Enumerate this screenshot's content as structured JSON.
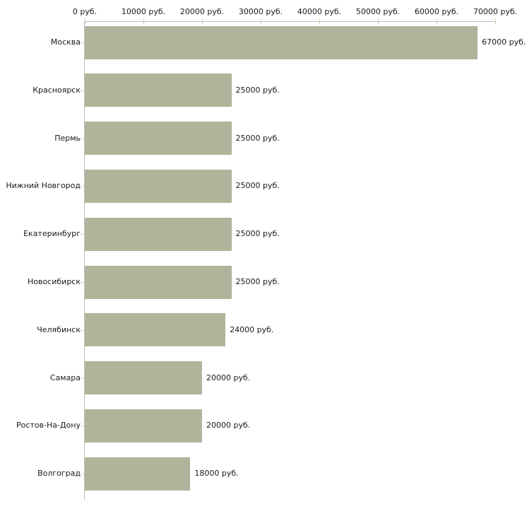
{
  "chart_data": {
    "type": "bar",
    "orientation": "horizontal",
    "title": "",
    "units": "руб.",
    "categories": [
      "Москва",
      "Красноярск",
      "Пермь",
      "Нижний Новгород",
      "Екатеринбург",
      "Новосибирск",
      "Челябинск",
      "Самара",
      "Ростов-На-Дону",
      "Волгоград"
    ],
    "values": [
      67000,
      25000,
      25000,
      25000,
      25000,
      25000,
      24000,
      20000,
      20000,
      18000
    ],
    "value_labels": [
      "67000 руб.",
      "25000 руб.",
      "25000 руб.",
      "25000 руб.",
      "25000 руб.",
      "25000 руб.",
      "24000 руб.",
      "20000 руб.",
      "20000 руб.",
      "18000 руб."
    ],
    "x_axis": {
      "position": "top",
      "min": 0,
      "max": 70000,
      "tick_values": [
        0,
        10000,
        20000,
        30000,
        40000,
        50000,
        60000,
        70000
      ],
      "tick_labels": [
        "0 руб.",
        "10000 руб.",
        "20000 руб.",
        "30000 руб.",
        "40000 руб.",
        "50000 руб.",
        "60000 руб.",
        "70000 руб."
      ]
    },
    "grid": false,
    "legend": false,
    "colors": {
      "bar_fill": "#b0b49b",
      "axis_line": "#bdbdbd",
      "x_tick": "#cfcdaa",
      "category_tick": "#d6cec7",
      "text": "#1a1a1a",
      "background": "#ffffff"
    }
  }
}
